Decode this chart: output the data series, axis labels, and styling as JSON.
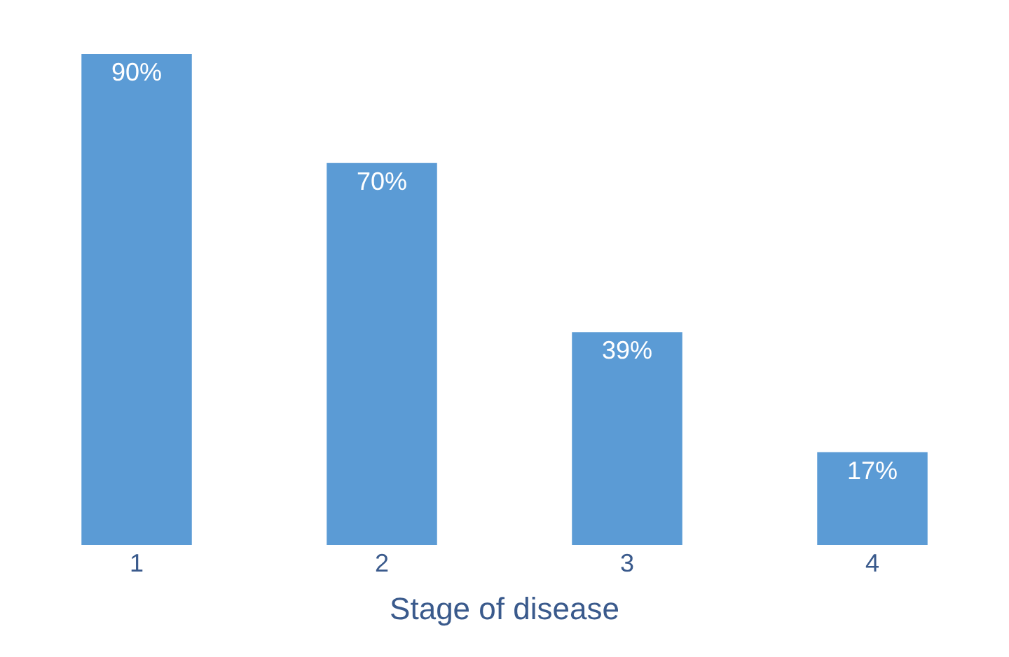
{
  "chart_data": {
    "type": "bar",
    "xlabel": "Stage of disease",
    "categories": [
      "1",
      "2",
      "3",
      "4"
    ],
    "values": [
      90,
      70,
      39,
      17
    ],
    "value_labels": [
      "90%",
      "70%",
      "39%",
      "17%"
    ],
    "color": "#5b9bd5"
  }
}
